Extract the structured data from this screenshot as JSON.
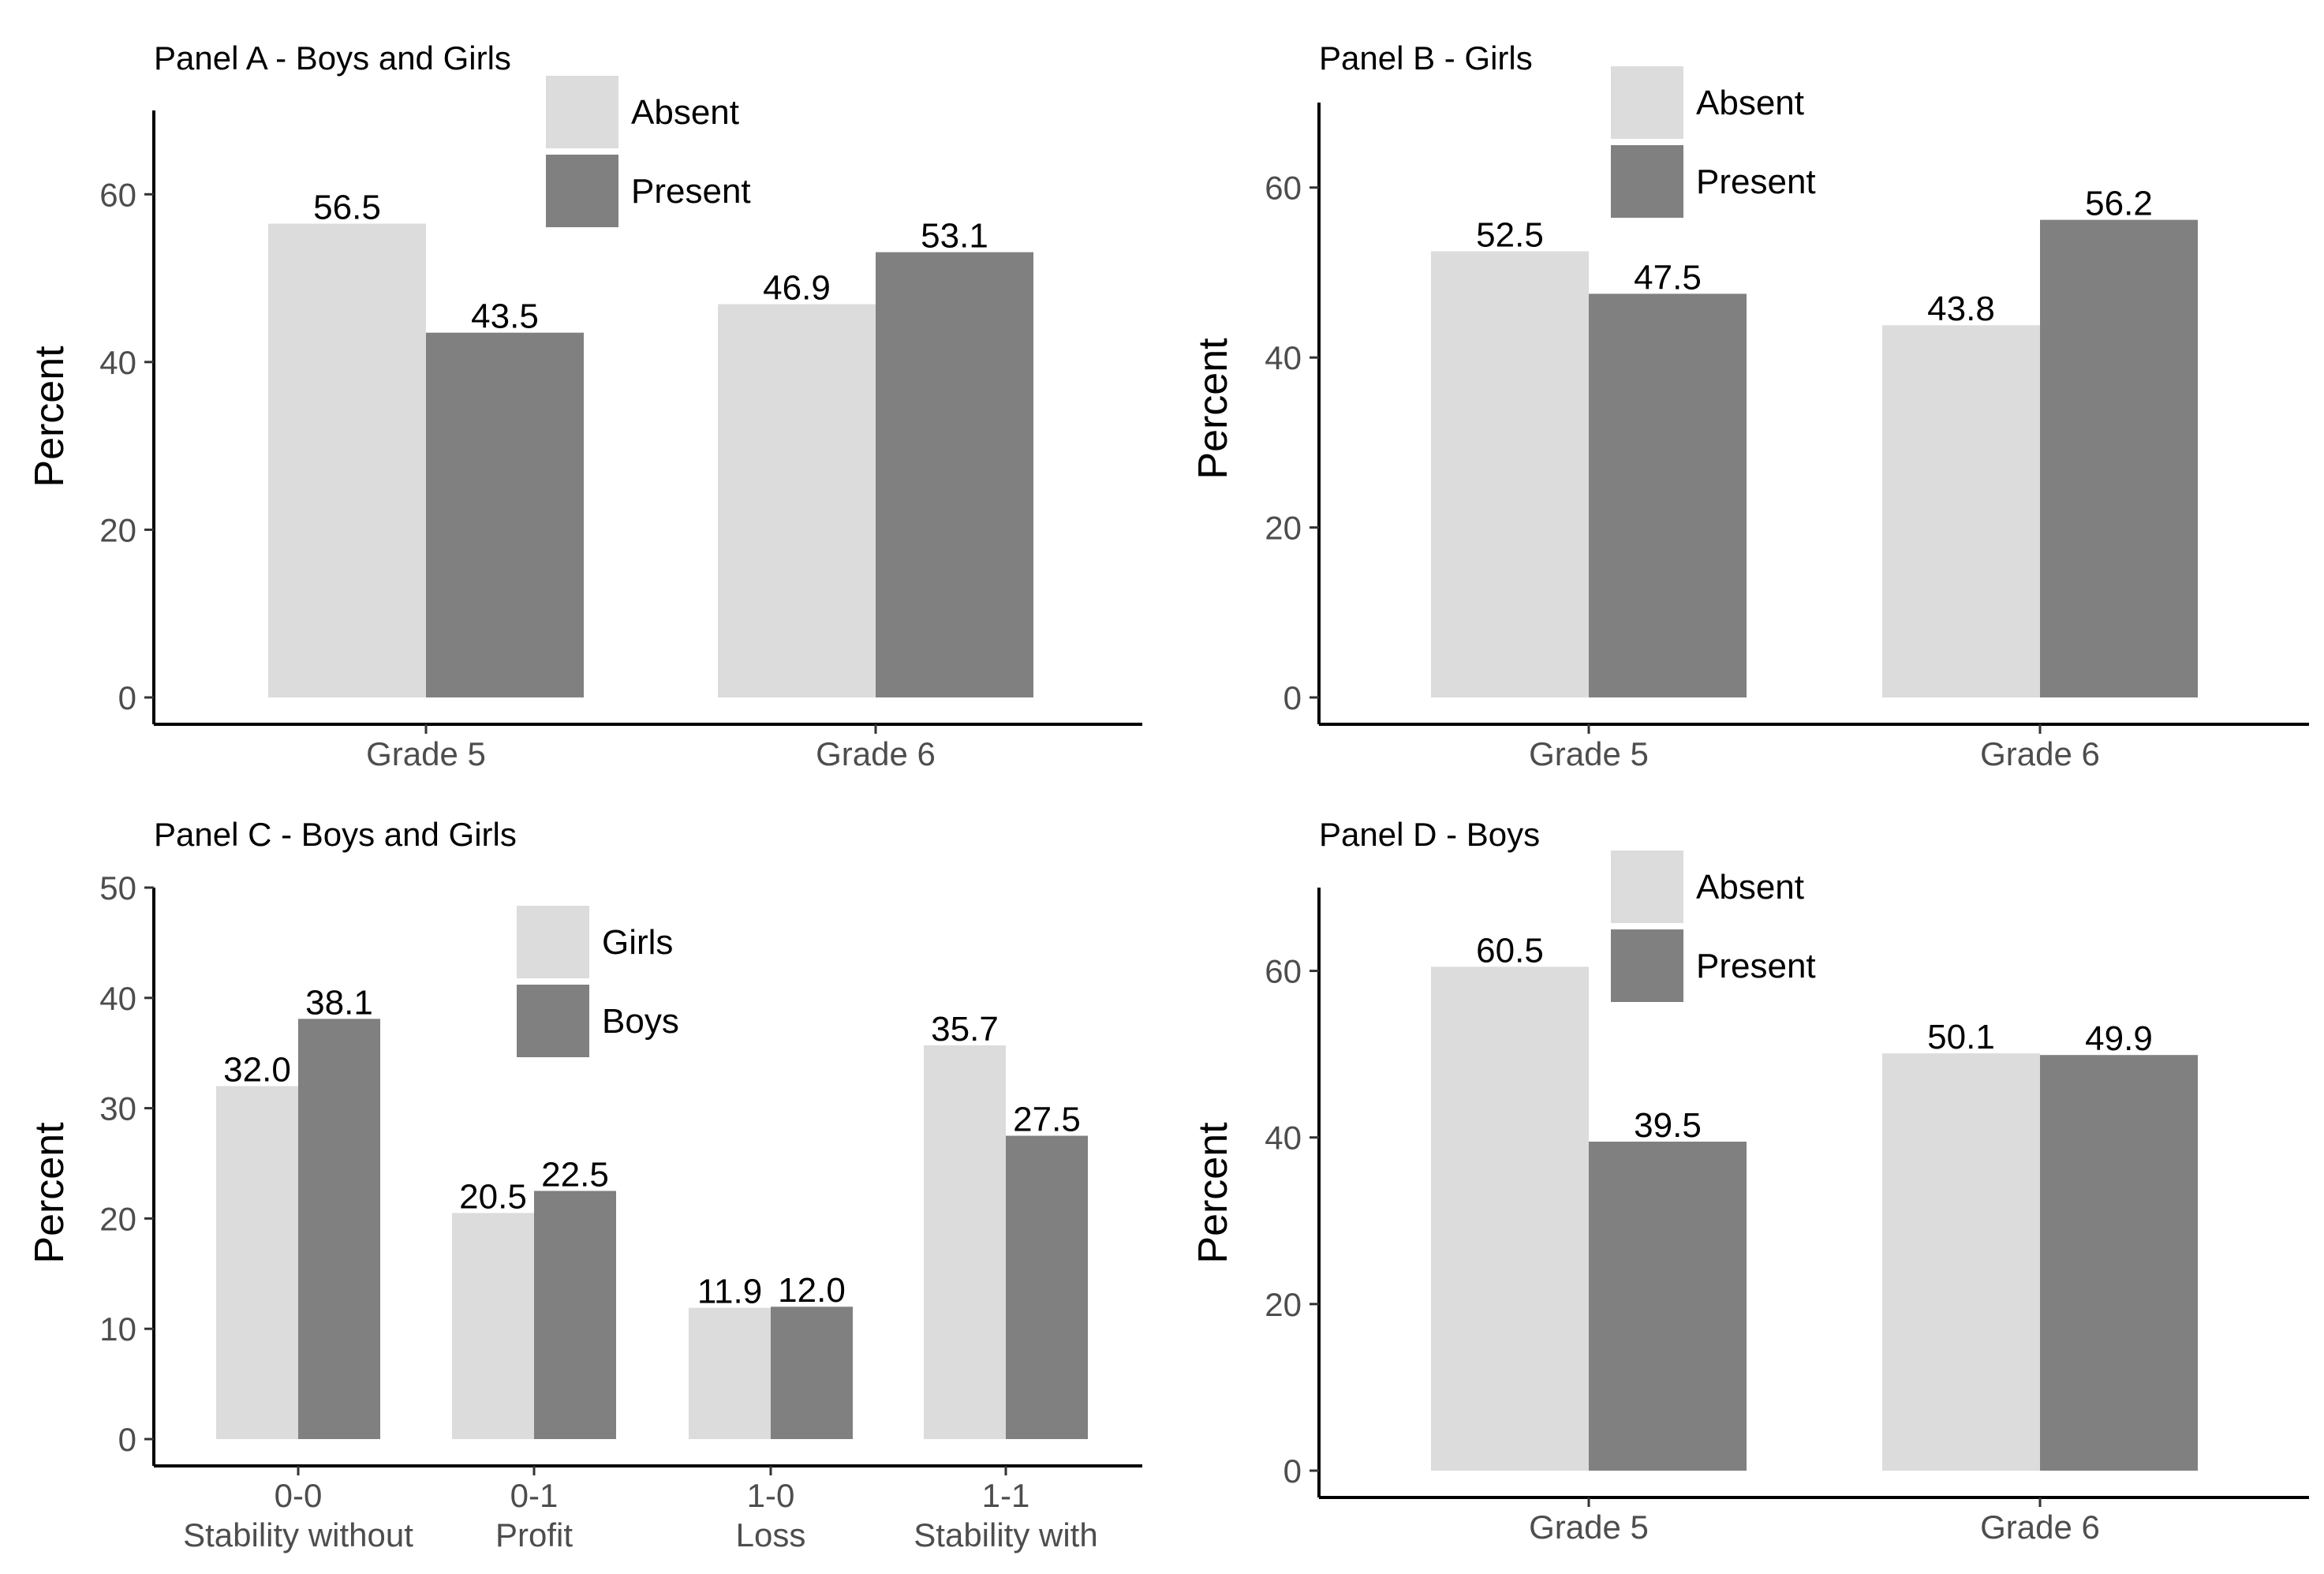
{
  "colors": {
    "light": "#dcdcdc",
    "dark": "#808080"
  },
  "chart_data": [
    {
      "id": "panel-a",
      "type": "bar",
      "title": "Panel A - Boys and Girls",
      "xlabel": "",
      "ylabel": "Percent",
      "ylim": [
        0,
        70
      ],
      "yticks": [
        0,
        20,
        40,
        60
      ],
      "categories": [
        "Grade 5",
        "Grade 6"
      ],
      "series": [
        {
          "name": "Absent",
          "values": [
            56.5,
            46.9
          ]
        },
        {
          "name": "Present",
          "values": [
            43.5,
            53.1
          ]
        }
      ],
      "labels": [
        [
          "56.5",
          "46.9"
        ],
        [
          "43.5",
          "53.1"
        ]
      ],
      "legend": "top-center",
      "grid": false
    },
    {
      "id": "panel-b",
      "type": "bar",
      "title": "Panel B - Girls",
      "xlabel": "",
      "ylabel": "Percent",
      "ylim": [
        0,
        70
      ],
      "yticks": [
        0,
        20,
        40,
        60
      ],
      "categories": [
        "Grade 5",
        "Grade 6"
      ],
      "series": [
        {
          "name": "Absent",
          "values": [
            52.5,
            43.8
          ]
        },
        {
          "name": "Present",
          "values": [
            47.5,
            56.2
          ]
        }
      ],
      "labels": [
        [
          "52.5",
          "43.8"
        ],
        [
          "47.5",
          "56.2"
        ]
      ],
      "legend": "top-center",
      "grid": false
    },
    {
      "id": "panel-c",
      "type": "bar",
      "title": "Panel C - Boys and Girls",
      "xlabel": "",
      "ylabel": "Percent",
      "ylim": [
        0,
        50
      ],
      "yticks": [
        0,
        10,
        20,
        30,
        40,
        50
      ],
      "categories": [
        "0-0\nStability without",
        "0-1\nProfit",
        "1-0\nLoss",
        "1-1\nStability with"
      ],
      "series": [
        {
          "name": "Girls",
          "values": [
            32.0,
            20.5,
            11.9,
            35.7
          ]
        },
        {
          "name": "Boys",
          "values": [
            38.1,
            22.5,
            12.0,
            27.5
          ]
        }
      ],
      "labels": [
        [
          "32.0",
          "20.5",
          "11.9",
          "35.7"
        ],
        [
          "38.1",
          "22.5",
          "12.0",
          "27.5"
        ]
      ],
      "legend": "top-center",
      "grid": false
    },
    {
      "id": "panel-d",
      "type": "bar",
      "title": "Panel D - Boys",
      "xlabel": "",
      "ylabel": "Percent",
      "ylim": [
        0,
        70
      ],
      "yticks": [
        0,
        20,
        40,
        60
      ],
      "categories": [
        "Grade 5",
        "Grade 6"
      ],
      "series": [
        {
          "name": "Absent",
          "values": [
            60.5,
            50.1
          ]
        },
        {
          "name": "Present",
          "values": [
            39.5,
            49.9
          ]
        }
      ],
      "labels": [
        [
          "60.5",
          "50.1"
        ],
        [
          "39.5",
          "49.9"
        ]
      ],
      "legend": "top-center",
      "grid": false
    }
  ]
}
